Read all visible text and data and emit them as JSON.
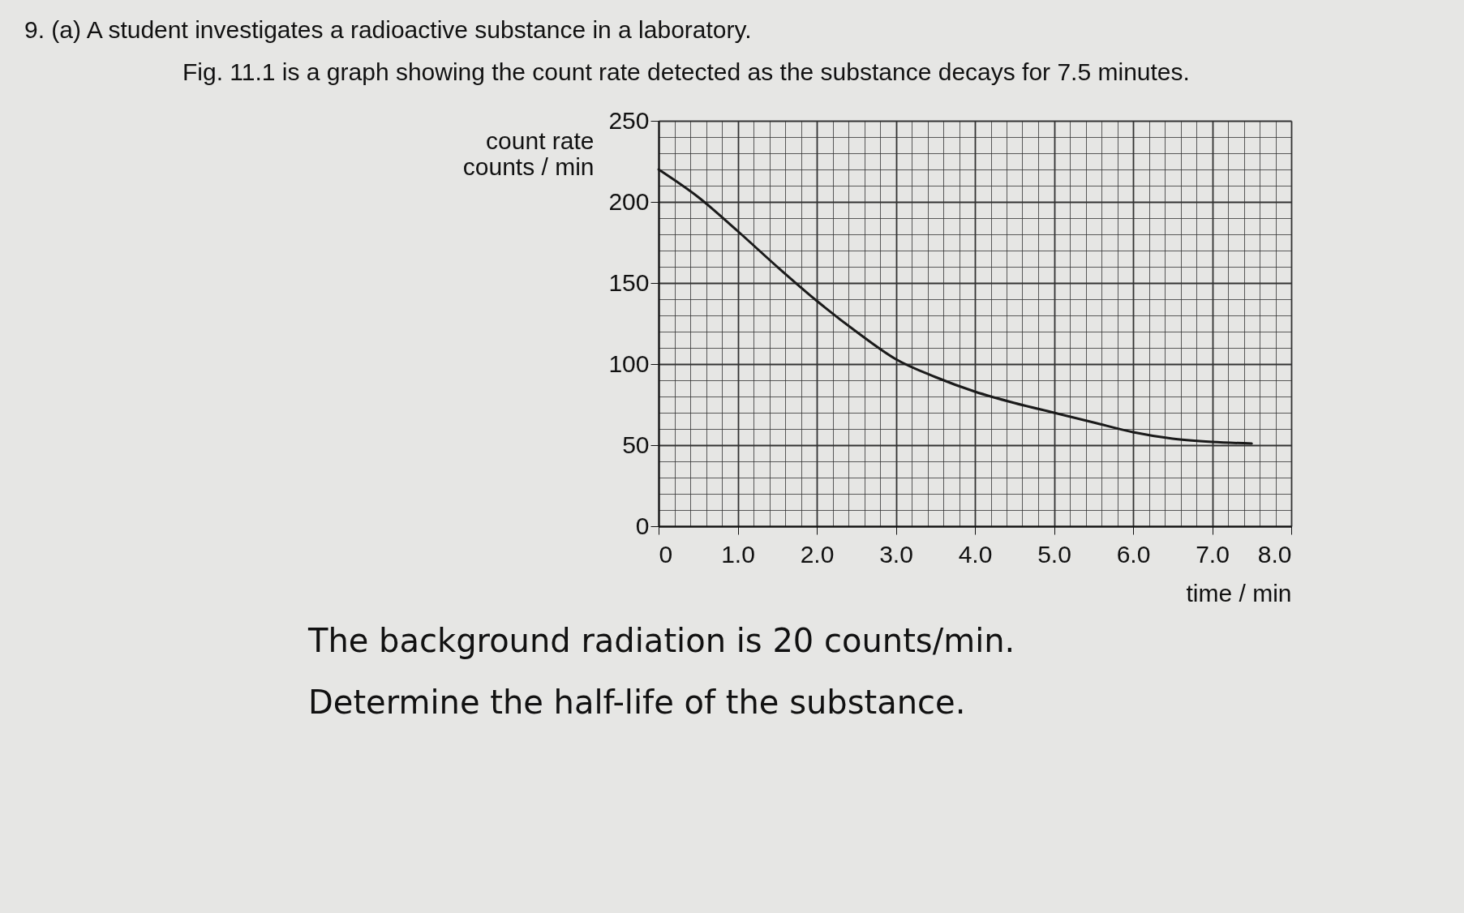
{
  "chart_data": {
    "type": "line",
    "title": "9.   (a)  A student investigates a radioactive substance in a laboratory.",
    "subtitle": "Fig. 11.1 is a graph showing the count rate detected as the substance decays for 7.5 minutes.",
    "ylabel": "count rate\ncounts / min",
    "xlabel": "time / min",
    "x": [
      0,
      0.5,
      1.0,
      1.5,
      2.0,
      2.5,
      3.0,
      3.5,
      4.0,
      4.5,
      5.0,
      5.5,
      6.0,
      6.5,
      7.0,
      7.5
    ],
    "series": [
      {
        "color": "#1a1a1a",
        "values": [
          220,
          203,
          182,
          160,
          139,
          120,
          103,
          92,
          83,
          76,
          70,
          64,
          58,
          54,
          52,
          51
        ]
      }
    ],
    "xlim": [
      0,
      8
    ],
    "xticks": [
      0,
      {
        "value": 1,
        "label": "1.0"
      },
      {
        "value": 2,
        "label": "2.0"
      },
      {
        "value": 3,
        "label": "3.0"
      },
      {
        "value": 4,
        "label": "4.0"
      },
      {
        "value": 5,
        "label": "5.0"
      },
      {
        "value": 6,
        "label": "6.0"
      },
      {
        "value": 7,
        "label": "7.0"
      },
      {
        "value": 8,
        "label": "8.0"
      }
    ],
    "ylim": [
      0,
      250
    ],
    "yticks": [
      0,
      50,
      100,
      150,
      200,
      250
    ],
    "grid": true,
    "marker": "none",
    "line_style": "solid",
    "annotations": [
      "The background radiation is 20 counts/min.",
      "Determine the half-life of the substance."
    ]
  }
}
